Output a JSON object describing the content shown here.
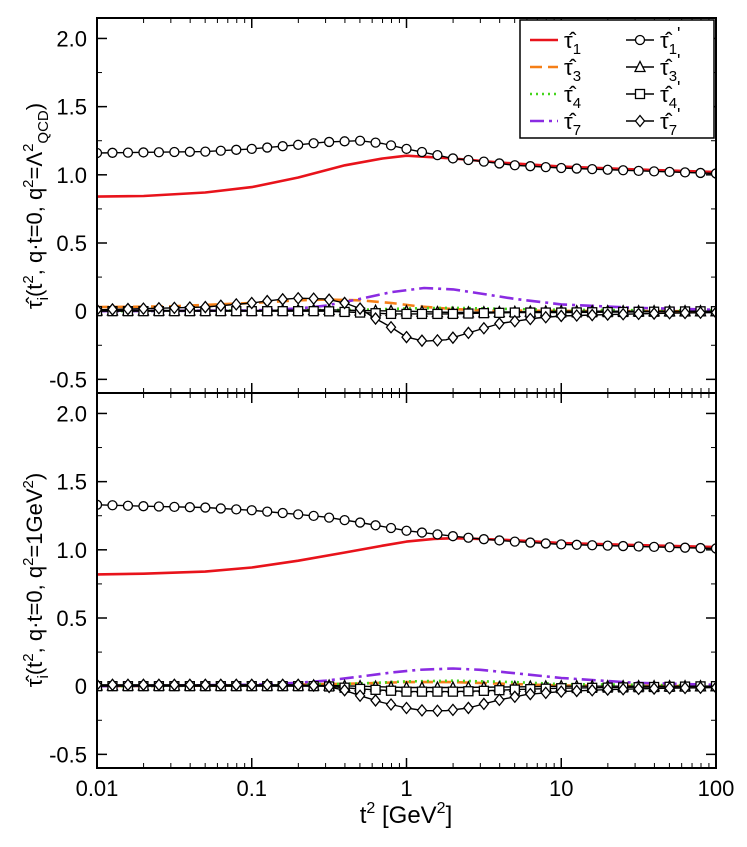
{
  "chart_data": [
    {
      "id": "top",
      "type": "line",
      "xscale": "log",
      "xlim": [
        0.01,
        100
      ],
      "ylim": [
        -0.6,
        2.15
      ],
      "yticks": [
        -0.5,
        0,
        0.5,
        1.0,
        1.5,
        2.0
      ],
      "ytick_labels": [
        "-0.5",
        "0",
        "0.5",
        "1.0",
        "1.5",
        "2.0"
      ],
      "ylabel": "τ̂i(t², q·t=0, q²=Λ²QCD)",
      "legend_position": "top-right",
      "series": [
        {
          "name": "τ̂1",
          "style": "solid",
          "color": "#e8131b",
          "x": [
            0.01,
            0.02,
            0.05,
            0.1,
            0.2,
            0.4,
            0.7,
            1.0,
            2.0,
            4.0,
            10,
            30,
            100
          ],
          "y": [
            0.84,
            0.845,
            0.87,
            0.91,
            0.98,
            1.07,
            1.12,
            1.14,
            1.12,
            1.09,
            1.06,
            1.04,
            1.02
          ]
        },
        {
          "name": "τ̂3",
          "style": "dashed",
          "color": "#f57f17",
          "x": [
            0.01,
            0.03,
            0.1,
            0.2,
            0.3,
            0.5,
            0.8,
            1.2,
            2.0,
            3.5,
            10,
            100
          ],
          "y": [
            0.03,
            0.035,
            0.06,
            0.08,
            0.085,
            0.08,
            0.06,
            0.035,
            0.015,
            0.005,
            0.002,
            0.0
          ]
        },
        {
          "name": "τ̂4",
          "style": "dotted",
          "color": "#44d41c",
          "x": [
            0.01,
            0.1,
            0.5,
            1.0,
            2.0,
            5.0,
            10,
            100
          ],
          "y": [
            0.0,
            0.005,
            0.01,
            0.02,
            0.025,
            0.015,
            0.01,
            0.005
          ]
        },
        {
          "name": "τ̂7",
          "style": "dashdot",
          "color": "#8a2be2",
          "x": [
            0.01,
            0.1,
            0.2,
            0.3,
            0.5,
            0.8,
            1.3,
            2.0,
            3.0,
            5.0,
            10,
            30,
            100
          ],
          "y": [
            0.0,
            0.005,
            0.02,
            0.04,
            0.09,
            0.14,
            0.17,
            0.16,
            0.13,
            0.09,
            0.05,
            0.025,
            0.01
          ]
        },
        {
          "name": "τ̂1′",
          "style": "solid",
          "color": "#000000",
          "marker": "circle",
          "x": [
            0.01,
            0.05,
            0.1,
            0.2,
            0.3,
            0.5,
            0.7,
            1.0,
            1.5,
            2.0,
            3.0,
            5.0,
            10,
            30,
            100
          ],
          "y": [
            1.16,
            1.17,
            1.19,
            1.22,
            1.24,
            1.25,
            1.23,
            1.19,
            1.15,
            1.12,
            1.1,
            1.07,
            1.05,
            1.03,
            1.01
          ]
        },
        {
          "name": "τ̂3′",
          "style": "solid",
          "color": "#000000",
          "marker": "triangle",
          "x": [
            0.01,
            0.1,
            0.3,
            0.5,
            1.0,
            2.0,
            5.0,
            10,
            100
          ],
          "y": [
            0.005,
            0.005,
            0.01,
            0.005,
            0.0,
            -0.01,
            -0.005,
            0.0,
            0.0
          ]
        },
        {
          "name": "τ̂4′",
          "style": "solid",
          "color": "#000000",
          "marker": "square",
          "x": [
            0.01,
            0.1,
            0.3,
            0.5,
            0.8,
            1.0,
            2.0,
            3.0,
            5.0,
            10,
            30,
            100
          ],
          "y": [
            0.0,
            0.0,
            0.0,
            -0.01,
            -0.02,
            -0.02,
            -0.02,
            -0.015,
            -0.01,
            -0.01,
            -0.005,
            0.0
          ]
        },
        {
          "name": "τ̂7′",
          "style": "solid",
          "color": "#000000",
          "marker": "diamond",
          "x": [
            0.01,
            0.05,
            0.1,
            0.15,
            0.2,
            0.3,
            0.4,
            0.5,
            0.6,
            0.8,
            1.0,
            1.3,
            1.8,
            2.5,
            4.0,
            7.0,
            10,
            20,
            50,
            100
          ],
          "y": [
            0.01,
            0.03,
            0.06,
            0.085,
            0.095,
            0.09,
            0.06,
            0.02,
            -0.04,
            -0.12,
            -0.19,
            -0.22,
            -0.21,
            -0.16,
            -0.09,
            -0.05,
            -0.035,
            -0.025,
            -0.015,
            -0.01
          ]
        }
      ]
    },
    {
      "id": "bottom",
      "type": "line",
      "xscale": "log",
      "xlim": [
        0.01,
        100
      ],
      "ylim": [
        -0.6,
        2.15
      ],
      "yticks": [
        -0.5,
        0,
        0.5,
        1.0,
        1.5,
        2.0
      ],
      "ytick_labels": [
        "-0.5",
        "0",
        "0.5",
        "1.0",
        "1.5",
        "2.0"
      ],
      "ylabel": "τ̂i(t², q·t=0, q²=1GeV²)",
      "xlabel": "t² [GeV²]",
      "xticks": [
        0.01,
        0.1,
        1,
        10,
        100
      ],
      "xtick_labels": [
        "0.01",
        "0.1",
        "1",
        "10",
        "100"
      ],
      "series": [
        {
          "name": "τ̂1",
          "style": "solid",
          "color": "#e8131b",
          "x": [
            0.01,
            0.02,
            0.05,
            0.1,
            0.2,
            0.4,
            0.7,
            1.0,
            1.5,
            2.0,
            3.0,
            5.0,
            10,
            30,
            100
          ],
          "y": [
            0.82,
            0.825,
            0.84,
            0.87,
            0.92,
            0.98,
            1.03,
            1.06,
            1.08,
            1.085,
            1.08,
            1.07,
            1.05,
            1.035,
            1.02
          ]
        },
        {
          "name": "τ̂3",
          "style": "dashed",
          "color": "#f57f17",
          "x": [
            0.01,
            0.1,
            0.3,
            0.5,
            1.0,
            2.0,
            5.0,
            10,
            100
          ],
          "y": [
            0.0,
            0.005,
            0.015,
            0.02,
            0.03,
            0.03,
            0.015,
            0.005,
            0.0
          ]
        },
        {
          "name": "τ̂4",
          "style": "dotted",
          "color": "#44d41c",
          "x": [
            0.01,
            0.1,
            0.5,
            1.0,
            2.0,
            5.0,
            10,
            100
          ],
          "y": [
            0.0,
            0.005,
            0.02,
            0.035,
            0.04,
            0.03,
            0.015,
            0.005
          ]
        },
        {
          "name": "τ̂7",
          "style": "dashdot",
          "color": "#8a2be2",
          "x": [
            0.01,
            0.1,
            0.2,
            0.3,
            0.5,
            0.8,
            1.2,
            2.0,
            3.0,
            5.0,
            10,
            30,
            100
          ],
          "y": [
            0.0,
            0.01,
            0.025,
            0.04,
            0.07,
            0.1,
            0.12,
            0.13,
            0.12,
            0.095,
            0.06,
            0.025,
            0.01
          ]
        },
        {
          "name": "τ̂1′",
          "style": "solid",
          "color": "#000000",
          "marker": "circle",
          "x": [
            0.01,
            0.02,
            0.05,
            0.1,
            0.2,
            0.3,
            0.5,
            1.0,
            2.0,
            3.0,
            5.0,
            10,
            30,
            100
          ],
          "y": [
            1.33,
            1.32,
            1.31,
            1.29,
            1.26,
            1.24,
            1.2,
            1.14,
            1.1,
            1.08,
            1.06,
            1.04,
            1.025,
            1.01
          ]
        },
        {
          "name": "τ̂3′",
          "style": "solid",
          "color": "#000000",
          "marker": "triangle",
          "x": [
            0.01,
            0.1,
            0.3,
            0.5,
            1.0,
            2.0,
            5.0,
            10,
            100
          ],
          "y": [
            0.005,
            0.005,
            0.005,
            0.0,
            -0.01,
            -0.01,
            -0.005,
            0.0,
            0.0
          ]
        },
        {
          "name": "τ̂4′",
          "style": "solid",
          "color": "#000000",
          "marker": "square",
          "x": [
            0.01,
            0.1,
            0.3,
            0.5,
            1.0,
            2.0,
            3.0,
            5.0,
            10,
            100
          ],
          "y": [
            0.0,
            0.0,
            0.0,
            -0.02,
            -0.04,
            -0.04,
            -0.035,
            -0.025,
            -0.015,
            0.0
          ]
        },
        {
          "name": "τ̂7′",
          "style": "solid",
          "color": "#000000",
          "marker": "diamond",
          "x": [
            0.01,
            0.1,
            0.2,
            0.3,
            0.4,
            0.5,
            0.7,
            1.0,
            1.3,
            1.8,
            2.5,
            4.0,
            6.0,
            10,
            20,
            50,
            100
          ],
          "y": [
            0.01,
            0.01,
            0.01,
            0.0,
            -0.03,
            -0.07,
            -0.12,
            -0.16,
            -0.18,
            -0.18,
            -0.16,
            -0.1,
            -0.06,
            -0.04,
            -0.025,
            -0.015,
            -0.01
          ]
        }
      ]
    }
  ],
  "legend": [
    {
      "sym": "τ̂",
      "sub": "1",
      "prime": false,
      "color": "#e8131b",
      "style": "solid"
    },
    {
      "sym": "τ̂",
      "sub": "3",
      "prime": false,
      "color": "#f57f17",
      "style": "dashed"
    },
    {
      "sym": "τ̂",
      "sub": "4",
      "prime": false,
      "color": "#44d41c",
      "style": "dotted"
    },
    {
      "sym": "τ̂",
      "sub": "7",
      "prime": false,
      "color": "#8a2be2",
      "style": "dashdot"
    },
    {
      "sym": "τ̂",
      "sub": "1",
      "prime": true,
      "color": "#000000",
      "marker": "circle"
    },
    {
      "sym": "τ̂",
      "sub": "3",
      "prime": true,
      "color": "#000000",
      "marker": "triangle"
    },
    {
      "sym": "τ̂",
      "sub": "4",
      "prime": true,
      "color": "#000000",
      "marker": "square"
    },
    {
      "sym": "τ̂",
      "sub": "7",
      "prime": true,
      "color": "#000000",
      "marker": "diamond"
    }
  ]
}
